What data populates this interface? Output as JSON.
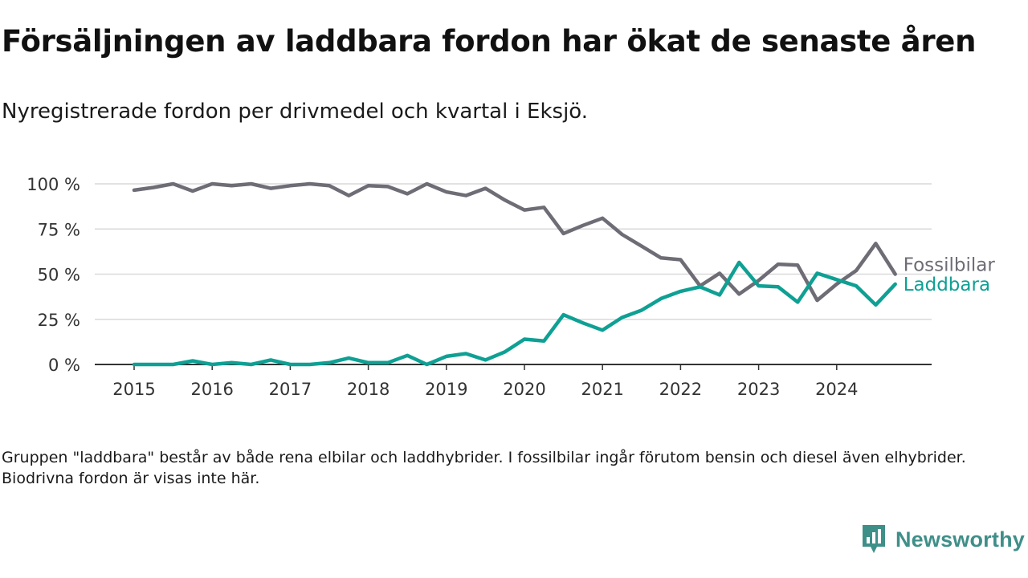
{
  "title": "Försäljningen av laddbara fordon har ökat de senaste åren",
  "subtitle": "Nyregistrerade fordon per drivmedel och kvartal i Eksjö.",
  "note": "Gruppen \"laddbara\" består av både rena elbilar och laddhybrider. I fossilbilar ingår förutom bensin och diesel även elhybrider. Biodrivna fordon är visas inte här.",
  "brand": {
    "name": "Newsworthy",
    "icon": "newsworthy-logo-icon"
  },
  "colors": {
    "fossil": "#6e6c75",
    "laddbara": "#0fa094",
    "grid": "#d9d9d9",
    "axis": "#333333",
    "brand": "#3f8f89"
  },
  "chart_data": {
    "type": "line",
    "title": "Försäljningen av laddbara fordon har ökat de senaste åren",
    "xlabel": "",
    "ylabel": "",
    "ylim": [
      0,
      100
    ],
    "y_ticks": [
      0,
      25,
      50,
      75,
      100
    ],
    "y_tick_labels": [
      "0 %",
      "25 %",
      "50 %",
      "75 %",
      "100 %"
    ],
    "x_tick_labels": [
      "2015",
      "2016",
      "2017",
      "2018",
      "2019",
      "2020",
      "2021",
      "2022",
      "2023",
      "2024"
    ],
    "x": [
      "2015Q1",
      "2015Q2",
      "2015Q3",
      "2015Q4",
      "2016Q1",
      "2016Q2",
      "2016Q3",
      "2016Q4",
      "2017Q1",
      "2017Q2",
      "2017Q3",
      "2017Q4",
      "2018Q1",
      "2018Q2",
      "2018Q3",
      "2018Q4",
      "2019Q1",
      "2019Q2",
      "2019Q3",
      "2019Q4",
      "2020Q1",
      "2020Q2",
      "2020Q3",
      "2020Q4",
      "2021Q1",
      "2021Q2",
      "2021Q3",
      "2021Q4",
      "2022Q1",
      "2022Q2",
      "2022Q3",
      "2022Q4",
      "2023Q1",
      "2023Q2",
      "2023Q3",
      "2023Q4",
      "2024Q1",
      "2024Q2",
      "2024Q3",
      "2024Q4"
    ],
    "grid": true,
    "series": [
      {
        "name": "Fossilbilar",
        "values": [
          96.5,
          98,
          100,
          96,
          100,
          99,
          100,
          97.5,
          99,
          100,
          99,
          93.5,
          99,
          98.5,
          94.5,
          100,
          95.5,
          93.5,
          97.5,
          91,
          85.5,
          87,
          72.5,
          77,
          81,
          72,
          65.5,
          59,
          58,
          43.5,
          50.5,
          39,
          46.5,
          55.5,
          55,
          35.5,
          44.5,
          52,
          67,
          50
        ]
      },
      {
        "name": "Laddbara",
        "values": [
          0,
          0,
          0,
          2,
          0,
          1,
          0,
          2.5,
          0,
          0,
          1,
          3.5,
          1,
          1,
          5,
          0,
          4.5,
          6,
          2.5,
          7,
          14,
          13,
          27.5,
          23,
          19,
          26,
          30,
          36.5,
          40.5,
          43,
          38.5,
          56.5,
          43.5,
          43,
          34.5,
          50.5,
          47,
          43.5,
          33,
          44.5
        ]
      }
    ]
  }
}
